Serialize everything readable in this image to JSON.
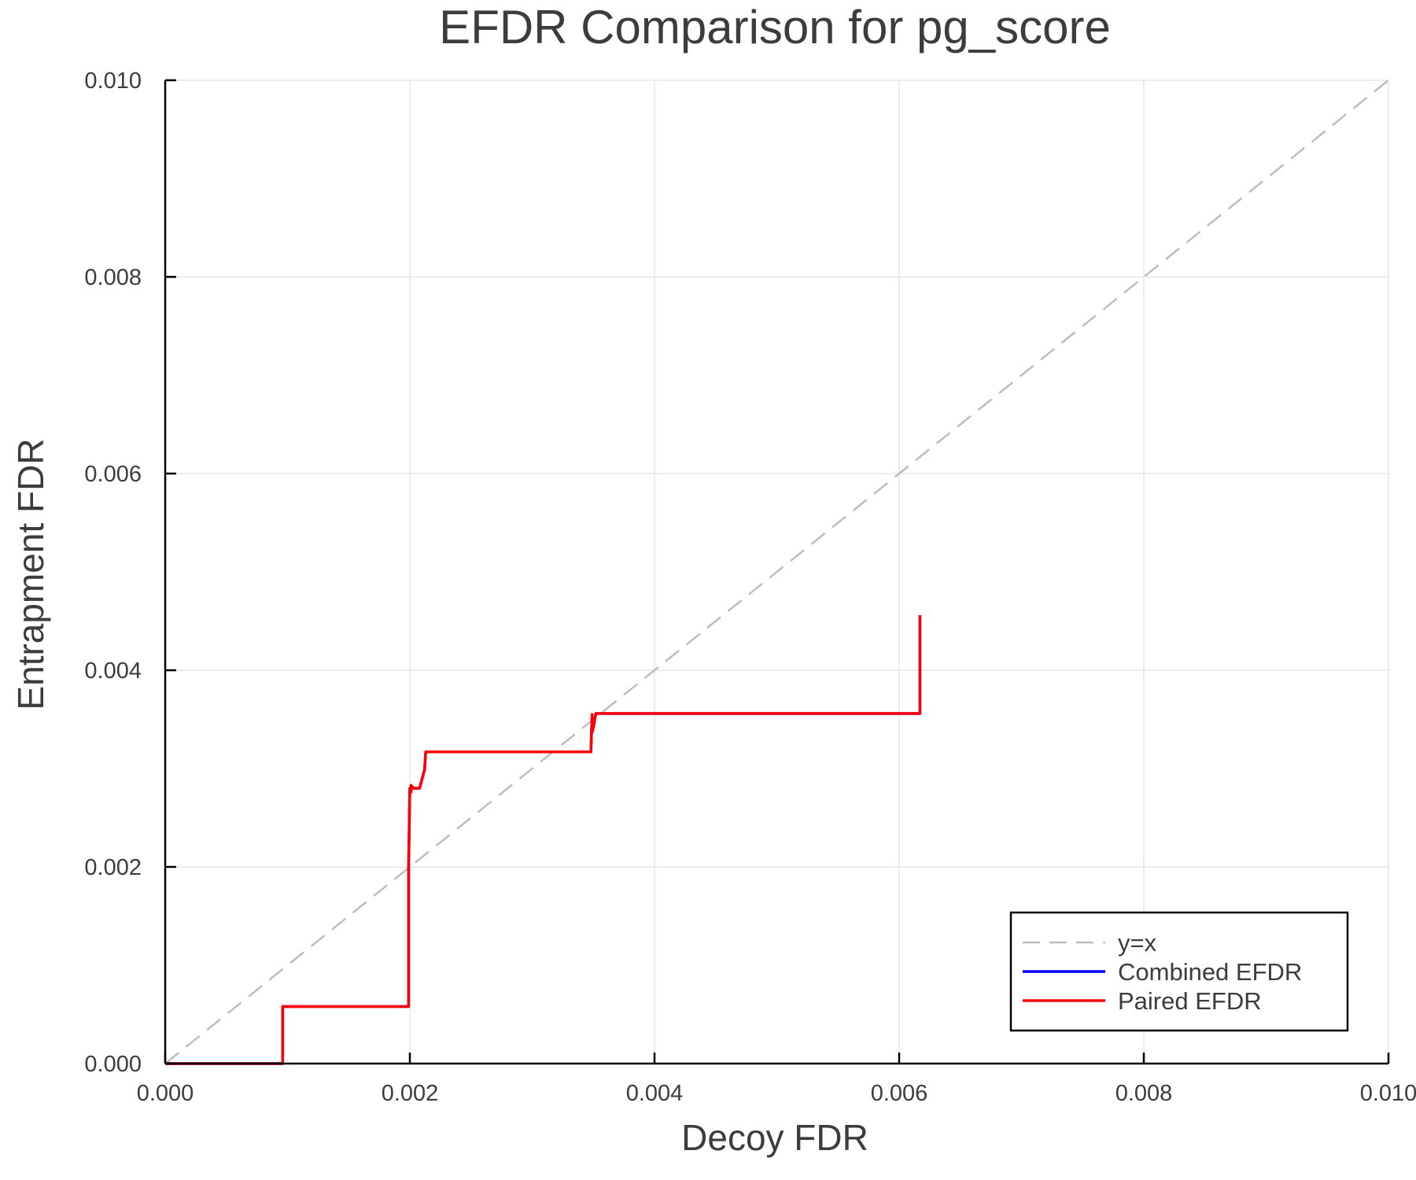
{
  "chart_data": {
    "type": "line",
    "title": "EFDR Comparison for pg_score",
    "xlabel": "Decoy FDR",
    "ylabel": "Entrapment FDR",
    "xlim": [
      0,
      0.01
    ],
    "ylim": [
      0,
      0.01
    ],
    "xticks": [
      "0.000",
      "0.002",
      "0.004",
      "0.006",
      "0.008",
      "0.010"
    ],
    "yticks": [
      "0.000",
      "0.002",
      "0.004",
      "0.006",
      "0.008",
      "0.010"
    ],
    "grid": true,
    "legend_position": "bottom-right",
    "series": [
      {
        "name": "y=x",
        "color": "#bdbdbd",
        "style": "dashed",
        "x": [
          0,
          0.01
        ],
        "y": [
          0,
          0.01
        ]
      },
      {
        "name": "Combined EFDR",
        "color": "#0000ff",
        "style": "solid",
        "x": [
          0,
          0.00096,
          0.00096,
          0.00199,
          0.00199,
          0.002,
          0.00201,
          0.00201,
          0.00203,
          0.00208,
          0.00212,
          0.00213,
          0.00348,
          0.00348,
          0.00349,
          0.00349,
          0.0035,
          0.00352,
          0.00617,
          0.00617
        ],
        "y": [
          0,
          0,
          0.00058,
          0.00058,
          0.002,
          0.0028,
          0.00276,
          0.00283,
          0.0028,
          0.0028,
          0.00299,
          0.00317,
          0.00317,
          0.00317,
          0.00355,
          0.00337,
          0.00342,
          0.00356,
          0.00356,
          0.00456
        ]
      },
      {
        "name": "Paired EFDR",
        "color": "#ff0000",
        "style": "solid",
        "x": [
          0,
          0.00096,
          0.00096,
          0.00199,
          0.00199,
          0.002,
          0.00201,
          0.00201,
          0.00203,
          0.00208,
          0.00212,
          0.00213,
          0.00348,
          0.00348,
          0.00349,
          0.00349,
          0.0035,
          0.00352,
          0.00617,
          0.00617
        ],
        "y": [
          0,
          0,
          0.00058,
          0.00058,
          0.002,
          0.0028,
          0.00276,
          0.00283,
          0.0028,
          0.0028,
          0.00299,
          0.00317,
          0.00317,
          0.00317,
          0.00355,
          0.00337,
          0.00342,
          0.00356,
          0.00356,
          0.00456
        ]
      }
    ]
  }
}
